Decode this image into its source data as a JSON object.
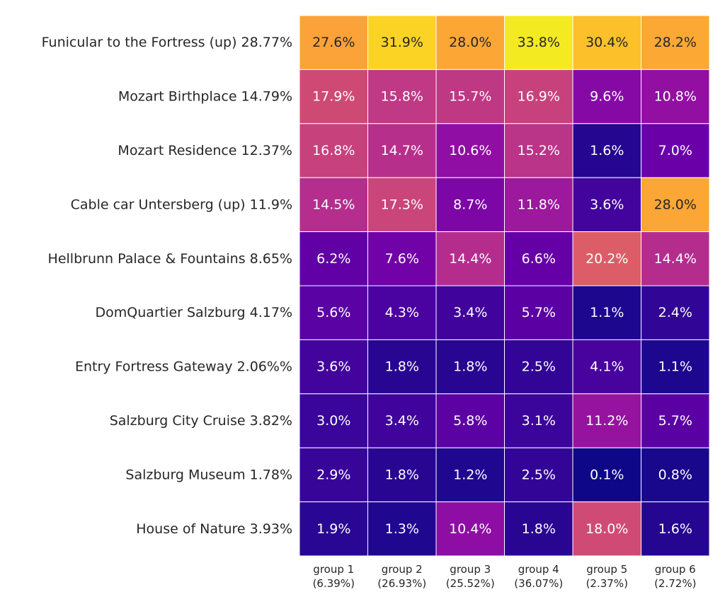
{
  "chart_data": {
    "type": "heatmap",
    "colormap": "plasma",
    "color_range": [
      0,
      35
    ],
    "rows": [
      "Funicular to the Fortress (up) 28.77%",
      "Mozart Birthplace 14.79%",
      "Mozart Residence 12.37%",
      "Cable car Untersberg (up) 11.9%",
      "Hellbrunn Palace & Fountains 8.65%",
      "DomQuartier Salzburg 4.17%",
      "Entry Fortress Gateway 2.06%%",
      "Salzburg City Cruise 3.82%",
      "Salzburg Museum 1.78%",
      "House of Nature 3.93%"
    ],
    "columns": [
      {
        "name": "group 1",
        "share": "(6.39%)"
      },
      {
        "name": "group 2",
        "share": "(26.93%)"
      },
      {
        "name": "group 3",
        "share": "(25.52%)"
      },
      {
        "name": "group 4",
        "share": "(36.07%)"
      },
      {
        "name": "group 5",
        "share": "(2.37%)"
      },
      {
        "name": "group 6",
        "share": "(2.72%)"
      }
    ],
    "values": [
      [
        27.6,
        31.9,
        28.0,
        33.8,
        30.4,
        28.2
      ],
      [
        17.9,
        15.8,
        15.7,
        16.9,
        9.6,
        10.8
      ],
      [
        16.8,
        14.7,
        10.6,
        15.2,
        1.6,
        7.0
      ],
      [
        14.5,
        17.3,
        8.7,
        11.8,
        3.6,
        28.0
      ],
      [
        6.2,
        7.6,
        14.4,
        6.6,
        20.2,
        14.4
      ],
      [
        5.6,
        4.3,
        3.4,
        5.7,
        1.1,
        2.4
      ],
      [
        3.6,
        1.8,
        1.8,
        2.5,
        4.1,
        1.1
      ],
      [
        3.0,
        3.4,
        5.8,
        3.1,
        11.2,
        5.7
      ],
      [
        2.9,
        1.8,
        1.2,
        2.5,
        0.1,
        0.8
      ],
      [
        1.9,
        1.3,
        10.4,
        1.8,
        18.0,
        1.6
      ]
    ],
    "value_suffix": "%"
  }
}
